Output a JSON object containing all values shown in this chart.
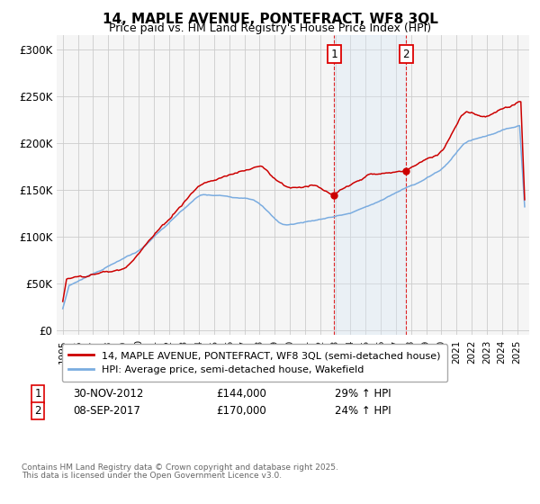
{
  "title1": "14, MAPLE AVENUE, PONTEFRACT, WF8 3QL",
  "title2": "Price paid vs. HM Land Registry's House Price Index (HPI)",
  "ylabel_ticks": [
    "£0",
    "£50K",
    "£100K",
    "£150K",
    "£200K",
    "£250K",
    "£300K"
  ],
  "ytick_vals": [
    0,
    50000,
    100000,
    150000,
    200000,
    250000,
    300000
  ],
  "ylim": [
    -5000,
    315000
  ],
  "legend_line1": "14, MAPLE AVENUE, PONTEFRACT, WF8 3QL (semi-detached house)",
  "legend_line2": "HPI: Average price, semi-detached house, Wakefield",
  "sale1_date": "30-NOV-2012",
  "sale1_price": "£144,000",
  "sale1_hpi": "29% ↑ HPI",
  "sale2_date": "08-SEP-2017",
  "sale2_price": "£170,000",
  "sale2_hpi": "24% ↑ HPI",
  "footnote1": "Contains HM Land Registry data © Crown copyright and database right 2025.",
  "footnote2": "This data is licensed under the Open Government Licence v3.0.",
  "red_color": "#cc0000",
  "blue_color": "#7aace0",
  "shade_color": "#d8e8f5",
  "vline_color": "#dd0000",
  "grid_color": "#cccccc",
  "bg_color": "#f5f5f5",
  "sale1_year": 2012.917,
  "sale2_year": 2017.667,
  "xmin": 1994.6,
  "xmax": 2025.8
}
